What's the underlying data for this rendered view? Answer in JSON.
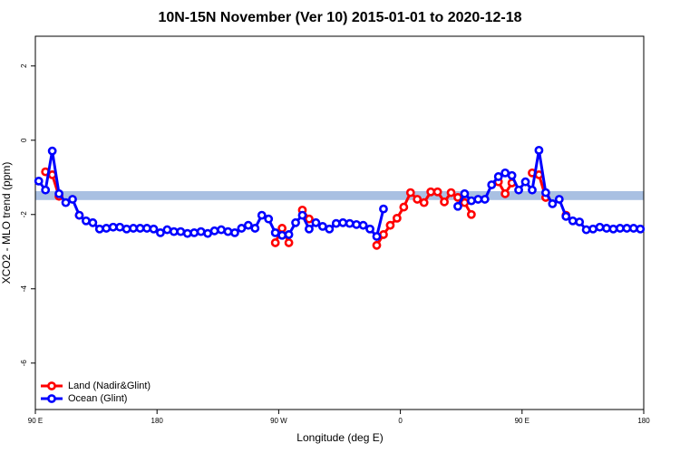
{
  "chart_data": {
    "type": "line",
    "title": "10N-15N November (Ver 10)   2015-01-01 to 2020-12-18",
    "x_label": "Longitude (deg E)",
    "y_label": "XCO2 - MLO trend (ppm)",
    "xlim": [
      90,
      540
    ],
    "ylim": [
      -7.25,
      2.8
    ],
    "xticks": [
      {
        "value": 90,
        "label": "90 E"
      },
      180,
      {
        "value": 270,
        "label": "90 W"
      },
      {
        "value": 360,
        "label": "0"
      },
      {
        "value": 450,
        "label": "90 E"
      },
      {
        "value": 540,
        "label": "180"
      }
    ],
    "yticks": [
      2,
      0,
      -2,
      -4,
      -6
    ],
    "band": {
      "ylim": [
        -1.61,
        -1.37
      ],
      "color": "#a9c0e2"
    },
    "legend": "bottom-left",
    "x": [
      92.5,
      97.5,
      102.5,
      107.5,
      112.5,
      117.5,
      122.5,
      127.5,
      132.5,
      137.5,
      142.5,
      147.5,
      152.5,
      157.5,
      162.5,
      167.5,
      172.5,
      177.5,
      182.5,
      187.5,
      192.5,
      197.5,
      202.5,
      207.5,
      212.5,
      217.5,
      222.5,
      227.5,
      232.5,
      237.5,
      242.5,
      247.5,
      252.5,
      257.5,
      262.5,
      267.5,
      272.5,
      277.5,
      282.5,
      287.5,
      292.5,
      297.5,
      302.5,
      307.5,
      312.5,
      317.5,
      322.5,
      327.5,
      332.5,
      337.5,
      342.5,
      347.5,
      352.5,
      357.5,
      362.5,
      367.5,
      372.5,
      377.5,
      382.5,
      387.5,
      392.5,
      397.5,
      402.5,
      407.5,
      412.5,
      417.5,
      422.5,
      427.5,
      432.5,
      437.5,
      442.5,
      447.5,
      452.5,
      457.5,
      462.5,
      467.5,
      472.5,
      477.5,
      482.5,
      487.5,
      492.5,
      497.5,
      502.5,
      507.5,
      512.5,
      517.5,
      522.5,
      527.5,
      532.5,
      537.5
    ],
    "series": [
      {
        "name": "Land (Nadir&Glint)",
        "color": "#ff0000",
        "values": [
          null,
          -0.85,
          -0.93,
          -1.51,
          null,
          null,
          -2.02,
          null,
          null,
          null,
          null,
          null,
          null,
          null,
          null,
          null,
          null,
          null,
          null,
          null,
          null,
          null,
          null,
          null,
          null,
          null,
          null,
          null,
          null,
          null,
          null,
          null,
          null,
          null,
          null,
          -2.76,
          -2.37,
          -2.76,
          null,
          -1.88,
          -2.12,
          null,
          null,
          null,
          null,
          null,
          null,
          null,
          null,
          null,
          -2.83,
          -2.54,
          -2.29,
          -2.1,
          -1.8,
          -1.41,
          -1.59,
          -1.68,
          -1.39,
          -1.39,
          -1.66,
          -1.41,
          -1.54,
          -1.68,
          -2.0,
          null,
          null,
          null,
          -1.12,
          -1.44,
          -1.15,
          null,
          null,
          -0.88,
          -0.93,
          -1.54,
          null,
          null,
          -2.02,
          null,
          null,
          null,
          null,
          null,
          null,
          null,
          null,
          null,
          null,
          null
        ]
      },
      {
        "name": "Ocean (Glint)",
        "color": "#0000ff",
        "values": [
          -1.1,
          -1.34,
          -0.29,
          -1.44,
          -1.68,
          -1.59,
          -2.02,
          -2.17,
          -2.22,
          -2.39,
          -2.37,
          -2.34,
          -2.34,
          -2.39,
          -2.37,
          -2.37,
          -2.37,
          -2.39,
          -2.49,
          -2.41,
          -2.46,
          -2.46,
          -2.51,
          -2.49,
          -2.46,
          -2.51,
          -2.44,
          -2.41,
          -2.46,
          -2.49,
          -2.37,
          -2.29,
          -2.37,
          -2.02,
          -2.12,
          -2.49,
          -2.56,
          -2.54,
          -2.22,
          -2.02,
          -2.39,
          -2.22,
          -2.32,
          -2.39,
          -2.24,
          -2.22,
          -2.24,
          -2.27,
          -2.29,
          -2.39,
          -2.59,
          -1.85,
          null,
          null,
          null,
          null,
          null,
          null,
          null,
          null,
          null,
          null,
          -1.78,
          -1.44,
          -1.63,
          -1.59,
          -1.59,
          -1.2,
          -0.98,
          -0.88,
          -0.95,
          -1.34,
          -1.12,
          -1.34,
          -0.27,
          -1.41,
          -1.71,
          -1.59,
          -2.05,
          -2.17,
          -2.2,
          -2.41,
          -2.39,
          -2.34,
          -2.37,
          -2.39,
          -2.37,
          -2.37,
          -2.37,
          -2.39
        ]
      }
    ]
  }
}
